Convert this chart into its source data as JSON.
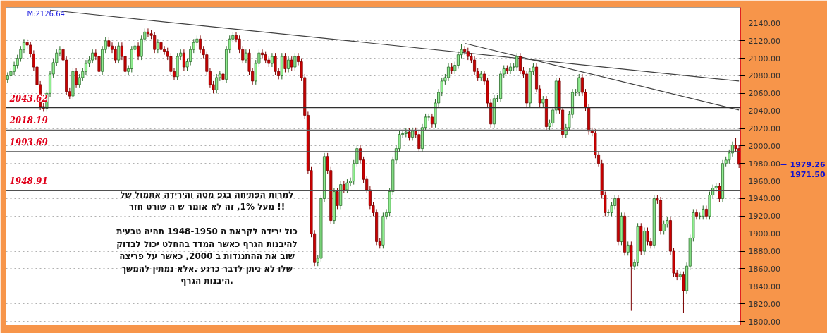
{
  "chart_data": {
    "type": "candlestick",
    "categories": [
      null,
      null,
      null,
      null,
      null,
      null,
      null,
      null,
      null,
      null,
      null,
      null,
      null,
      null,
      null,
      null,
      null,
      null,
      null,
      null,
      null,
      null,
      null,
      null,
      null,
      null,
      null,
      null,
      null,
      null,
      null,
      null,
      null,
      null,
      null,
      null,
      null,
      null,
      null,
      null,
      null,
      null,
      null,
      null,
      null,
      null,
      null,
      null,
      null,
      null,
      null,
      null,
      null,
      null,
      null,
      null,
      null,
      null,
      null,
      null,
      null,
      null,
      null,
      null,
      null,
      null,
      null,
      null,
      null,
      null,
      null,
      null,
      null,
      null,
      null,
      null,
      null,
      null,
      null,
      null,
      null,
      null,
      null,
      null,
      null,
      null,
      null,
      null,
      null,
      null,
      null,
      null,
      null,
      null,
      null,
      null,
      null,
      null,
      null,
      null,
      null,
      null,
      null,
      null,
      null,
      null,
      null,
      null,
      null,
      null,
      null,
      null,
      null,
      null,
      null,
      null,
      null,
      null,
      null,
      null,
      null,
      null,
      null,
      null,
      null,
      null,
      null,
      null,
      null,
      null,
      null,
      null,
      null,
      null,
      null,
      null,
      null,
      null,
      null,
      null,
      null,
      null,
      null,
      null,
      null,
      null,
      null,
      null,
      null,
      null,
      null,
      null,
      null,
      null,
      null,
      null,
      null,
      null,
      null,
      null,
      null,
      null,
      null,
      null,
      null,
      null,
      null,
      null,
      null,
      null,
      null,
      null,
      null,
      null,
      null,
      null,
      null,
      null,
      null,
      null,
      null,
      null,
      null,
      null,
      null,
      null,
      null,
      null,
      null,
      null,
      null,
      null,
      null,
      null,
      null,
      null,
      null,
      null,
      null,
      null,
      null,
      null,
      null,
      null,
      null,
      null,
      null,
      null,
      null,
      null,
      null,
      null,
      null,
      null,
      null,
      null,
      null,
      null,
      null,
      null,
      null,
      null,
      null,
      null,
      null
    ],
    "ohlc": [
      [
        2076,
        2084,
        2072,
        2080
      ],
      [
        2080,
        2089,
        2076,
        2085
      ],
      [
        2085,
        2096,
        2081,
        2092
      ],
      [
        2092,
        2104,
        2088,
        2100
      ],
      [
        2100,
        2114,
        2096,
        2110
      ],
      [
        2110,
        2122,
        2106,
        2118
      ],
      [
        2118,
        2122,
        2111,
        2115
      ],
      [
        2115,
        2119,
        2101,
        2105
      ],
      [
        2105,
        2109,
        2086,
        2090
      ],
      [
        2090,
        2094,
        2066,
        2070
      ],
      [
        2070,
        2074,
        2041,
        2045
      ],
      [
        2045,
        2049,
        2039,
        2043
      ],
      [
        2043,
        2064,
        2039,
        2060
      ],
      [
        2060,
        2086,
        2056,
        2082
      ],
      [
        2082,
        2099,
        2078,
        2095
      ],
      [
        2095,
        2110,
        2091,
        2106
      ],
      [
        2106,
        2114,
        2102,
        2110
      ],
      [
        2110,
        2114,
        2094,
        2098
      ],
      [
        2098,
        2102,
        2058,
        2062
      ],
      [
        2062,
        2066,
        2053,
        2057
      ],
      [
        2057,
        2089,
        2053,
        2085
      ],
      [
        2085,
        2089,
        2066,
        2070
      ],
      [
        2070,
        2082,
        2066,
        2078
      ],
      [
        2078,
        2089,
        2074,
        2085
      ],
      [
        2085,
        2098,
        2081,
        2094
      ],
      [
        2094,
        2102,
        2090,
        2098
      ],
      [
        2098,
        2110,
        2094,
        2106
      ],
      [
        2106,
        2110,
        2098,
        2102
      ],
      [
        2102,
        2106,
        2081,
        2085
      ],
      [
        2085,
        2114,
        2081,
        2110
      ],
      [
        2110,
        2124,
        2106,
        2120
      ],
      [
        2120,
        2124,
        2110,
        2114
      ],
      [
        2114,
        2118,
        2106,
        2110
      ],
      [
        2110,
        2114,
        2094,
        2098
      ],
      [
        2098,
        2118,
        2094,
        2114
      ],
      [
        2114,
        2118,
        2098,
        2102
      ],
      [
        2102,
        2106,
        2081,
        2085
      ],
      [
        2085,
        2092,
        2081,
        2088
      ],
      [
        2088,
        2114,
        2084,
        2110
      ],
      [
        2110,
        2118,
        2106,
        2114
      ],
      [
        2114,
        2118,
        2098,
        2102
      ],
      [
        2102,
        2126,
        2098,
        2122
      ],
      [
        2122,
        2134,
        2118,
        2130
      ],
      [
        2130,
        2134,
        2124,
        2128
      ],
      [
        2128,
        2132,
        2122,
        2126
      ],
      [
        2126,
        2130,
        2106,
        2110
      ],
      [
        2110,
        2122,
        2106,
        2118
      ],
      [
        2118,
        2122,
        2106,
        2110
      ],
      [
        2110,
        2114,
        2104,
        2108
      ],
      [
        2108,
        2112,
        2098,
        2102
      ],
      [
        2102,
        2106,
        2081,
        2085
      ],
      [
        2085,
        2089,
        2075,
        2079
      ],
      [
        2079,
        2106,
        2075,
        2102
      ],
      [
        2102,
        2110,
        2098,
        2106
      ],
      [
        2106,
        2110,
        2086,
        2090
      ],
      [
        2090,
        2100,
        2086,
        2096
      ],
      [
        2096,
        2114,
        2092,
        2110
      ],
      [
        2110,
        2122,
        2106,
        2118
      ],
      [
        2118,
        2126,
        2114,
        2122
      ],
      [
        2122,
        2126,
        2106,
        2110
      ],
      [
        2110,
        2114,
        2100,
        2104
      ],
      [
        2104,
        2108,
        2081,
        2085
      ],
      [
        2085,
        2089,
        2066,
        2070
      ],
      [
        2070,
        2074,
        2060,
        2064
      ],
      [
        2064,
        2082,
        2060,
        2078
      ],
      [
        2078,
        2086,
        2074,
        2082
      ],
      [
        2082,
        2086,
        2072,
        2076
      ],
      [
        2076,
        2114,
        2072,
        2110
      ],
      [
        2110,
        2126,
        2106,
        2122
      ],
      [
        2122,
        2130,
        2118,
        2126
      ],
      [
        2126,
        2130,
        2118,
        2122
      ],
      [
        2122,
        2126,
        2106,
        2110
      ],
      [
        2110,
        2114,
        2094,
        2098
      ],
      [
        2098,
        2110,
        2094,
        2106
      ],
      [
        2106,
        2110,
        2081,
        2085
      ],
      [
        2085,
        2089,
        2070,
        2074
      ],
      [
        2074,
        2098,
        2070,
        2094
      ],
      [
        2094,
        2110,
        2090,
        2106
      ],
      [
        2106,
        2110,
        2100,
        2104
      ],
      [
        2104,
        2108,
        2094,
        2098
      ],
      [
        2098,
        2102,
        2090,
        2094
      ],
      [
        2094,
        2106,
        2090,
        2102
      ],
      [
        2102,
        2106,
        2081,
        2085
      ],
      [
        2085,
        2089,
        2076,
        2080
      ],
      [
        2080,
        2106,
        2076,
        2102
      ],
      [
        2102,
        2106,
        2084,
        2088
      ],
      [
        2088,
        2102,
        2084,
        2098
      ],
      [
        2098,
        2102,
        2086,
        2090
      ],
      [
        2090,
        2106,
        2086,
        2102
      ],
      [
        2102,
        2106,
        2092,
        2096
      ],
      [
        2096,
        2100,
        2074,
        2078
      ],
      [
        2078,
        2082,
        2031,
        2035
      ],
      [
        2035,
        2039,
        1968,
        1972
      ],
      [
        1972,
        1976,
        1896,
        1900
      ],
      [
        1900,
        1904,
        1863,
        1867
      ],
      [
        1867,
        1876,
        1863,
        1872
      ],
      [
        1872,
        1944,
        1868,
        1940
      ],
      [
        1940,
        1992,
        1936,
        1988
      ],
      [
        1988,
        1992,
        1968,
        1972
      ],
      [
        1972,
        1976,
        1911,
        1915
      ],
      [
        1915,
        1952,
        1911,
        1948
      ],
      [
        1948,
        1952,
        1928,
        1932
      ],
      [
        1932,
        1960,
        1928,
        1956
      ],
      [
        1956,
        1960,
        1946,
        1950
      ],
      [
        1950,
        1962,
        1946,
        1958
      ],
      [
        1958,
        1964,
        1954,
        1960
      ],
      [
        1960,
        1984,
        1956,
        1980
      ],
      [
        1980,
        2001,
        1976,
        1997
      ],
      [
        1997,
        2001,
        1980,
        1984
      ],
      [
        1984,
        1988,
        1958,
        1962
      ],
      [
        1962,
        1966,
        1946,
        1950
      ],
      [
        1950,
        1954,
        1928,
        1932
      ],
      [
        1932,
        1936,
        1920,
        1924
      ],
      [
        1924,
        1928,
        1887,
        1891
      ],
      [
        1891,
        1895,
        1883,
        1887
      ],
      [
        1887,
        1924,
        1883,
        1920
      ],
      [
        1920,
        1928,
        1916,
        1924
      ],
      [
        1924,
        1952,
        1920,
        1948
      ],
      [
        1948,
        1988,
        1944,
        1984
      ],
      [
        1984,
        2001,
        1980,
        1997
      ],
      [
        1997,
        2017,
        1993,
        2013
      ],
      [
        2013,
        2018,
        2009,
        2014
      ],
      [
        2014,
        2020,
        2010,
        2016
      ],
      [
        2016,
        2020,
        2006,
        2010
      ],
      [
        2010,
        2021,
        2006,
        2017
      ],
      [
        2017,
        2021,
        2009,
        2013
      ],
      [
        2013,
        2017,
        1993,
        1997
      ],
      [
        1997,
        2025,
        1993,
        2021
      ],
      [
        2021,
        2037,
        2017,
        2033
      ],
      [
        2033,
        2037,
        2029,
        2033
      ],
      [
        2033,
        2037,
        2021,
        2025
      ],
      [
        2025,
        2053,
        2021,
        2049
      ],
      [
        2049,
        2065,
        2045,
        2061
      ],
      [
        2061,
        2078,
        2057,
        2074
      ],
      [
        2074,
        2082,
        2070,
        2078
      ],
      [
        2078,
        2094,
        2074,
        2090
      ],
      [
        2090,
        2094,
        2082,
        2086
      ],
      [
        2086,
        2096,
        2082,
        2092
      ],
      [
        2092,
        2108,
        2088,
        2104
      ],
      [
        2104,
        2116,
        2100,
        2110
      ],
      [
        2110,
        2114,
        2104,
        2108
      ],
      [
        2108,
        2112,
        2098,
        2102
      ],
      [
        2102,
        2106,
        2094,
        2098
      ],
      [
        2098,
        2102,
        2081,
        2085
      ],
      [
        2085,
        2089,
        2074,
        2078
      ],
      [
        2078,
        2086,
        2074,
        2082
      ],
      [
        2082,
        2086,
        2070,
        2074
      ],
      [
        2074,
        2078,
        2045,
        2049
      ],
      [
        2049,
        2053,
        2021,
        2025
      ],
      [
        2025,
        2058,
        2021,
        2054
      ],
      [
        2054,
        2058,
        2050,
        2054
      ],
      [
        2054,
        2086,
        2050,
        2082
      ],
      [
        2082,
        2092,
        2078,
        2088
      ],
      [
        2088,
        2092,
        2082,
        2086
      ],
      [
        2086,
        2094,
        2082,
        2090
      ],
      [
        2090,
        2094,
        2086,
        2090
      ],
      [
        2090,
        2106,
        2086,
        2102
      ],
      [
        2102,
        2106,
        2082,
        2086
      ],
      [
        2086,
        2090,
        2078,
        2082
      ],
      [
        2082,
        2086,
        2045,
        2049
      ],
      [
        2049,
        2089,
        2045,
        2085
      ],
      [
        2085,
        2094,
        2081,
        2090
      ],
      [
        2090,
        2094,
        2061,
        2065
      ],
      [
        2065,
        2069,
        2045,
        2049
      ],
      [
        2049,
        2057,
        2045,
        2053
      ],
      [
        2053,
        2057,
        2018,
        2022
      ],
      [
        2022,
        2030,
        2018,
        2026
      ],
      [
        2026,
        2045,
        2022,
        2041
      ],
      [
        2041,
        2078,
        2037,
        2074
      ],
      [
        2074,
        2078,
        2037,
        2041
      ],
      [
        2041,
        2045,
        2009,
        2013
      ],
      [
        2013,
        2025,
        2009,
        2021
      ],
      [
        2021,
        2040,
        2017,
        2036
      ],
      [
        2036,
        2065,
        2032,
        2061
      ],
      [
        2061,
        2065,
        2057,
        2061
      ],
      [
        2061,
        2082,
        2057,
        2078
      ],
      [
        2078,
        2082,
        2057,
        2061
      ],
      [
        2061,
        2065,
        2040,
        2044
      ],
      [
        2044,
        2048,
        2013,
        2017
      ],
      [
        2017,
        2021,
        2011,
        2015
      ],
      [
        2015,
        2019,
        1986,
        1990
      ],
      [
        1990,
        1994,
        1976,
        1980
      ],
      [
        1980,
        1984,
        1940,
        1944
      ],
      [
        1944,
        1948,
        1920,
        1924
      ],
      [
        1924,
        1928,
        1920,
        1924
      ],
      [
        1924,
        1936,
        1920,
        1932
      ],
      [
        1932,
        1944,
        1928,
        1940
      ],
      [
        1940,
        1944,
        1887,
        1891
      ],
      [
        1891,
        1924,
        1887,
        1920
      ],
      [
        1920,
        1924,
        1875,
        1879
      ],
      [
        1879,
        1891,
        1875,
        1887
      ],
      [
        1887,
        1891,
        1812,
        1863
      ],
      [
        1863,
        1871,
        1859,
        1867
      ],
      [
        1867,
        1912,
        1863,
        1908
      ],
      [
        1908,
        1912,
        1876,
        1880
      ],
      [
        1880,
        1907,
        1876,
        1903
      ],
      [
        1903,
        1907,
        1887,
        1891
      ],
      [
        1891,
        1895,
        1883,
        1887
      ],
      [
        1887,
        1944,
        1883,
        1940
      ],
      [
        1940,
        1944,
        1934,
        1938
      ],
      [
        1938,
        1942,
        1899,
        1903
      ],
      [
        1903,
        1915,
        1899,
        1911
      ],
      [
        1911,
        1919,
        1907,
        1915
      ],
      [
        1915,
        1919,
        1876,
        1880
      ],
      [
        1880,
        1884,
        1851,
        1855
      ],
      [
        1855,
        1859,
        1847,
        1851
      ],
      [
        1851,
        1857,
        1847,
        1853
      ],
      [
        1853,
        1857,
        1810,
        1835
      ],
      [
        1835,
        1867,
        1831,
        1863
      ],
      [
        1863,
        1899,
        1859,
        1895
      ],
      [
        1895,
        1928,
        1891,
        1924
      ],
      [
        1924,
        1928,
        1916,
        1920
      ],
      [
        1920,
        1924,
        1916,
        1920
      ],
      [
        1920,
        1932,
        1916,
        1928
      ],
      [
        1928,
        1932,
        1916,
        1920
      ],
      [
        1920,
        1948,
        1916,
        1944
      ],
      [
        1944,
        1956,
        1940,
        1952
      ],
      [
        1952,
        1958,
        1948,
        1954
      ],
      [
        1954,
        1958,
        1936,
        1940
      ],
      [
        1940,
        1984,
        1936,
        1980
      ],
      [
        1980,
        1988,
        1976,
        1984
      ],
      [
        1984,
        1996,
        1980,
        1992
      ],
      [
        1992,
        2005,
        1988,
        2001
      ],
      [
        2001,
        2009,
        1993,
        1997
      ],
      [
        1997,
        2001,
        1975,
        1979
      ]
    ],
    "series": [
      {
        "type": "line",
        "color": "#404040",
        "values": [
          null,
          null,
          null,
          null,
          null,
          null,
          null,
          null,
          null,
          null,
          null,
          null,
          null,
          2155,
          null,
          null,
          null,
          null,
          null,
          null,
          null,
          null,
          null,
          null,
          null,
          null,
          null,
          null,
          null,
          null,
          null,
          null,
          null,
          null,
          null,
          null,
          null,
          null,
          null,
          null,
          null,
          null,
          null,
          null,
          null,
          null,
          null,
          null,
          null,
          null,
          null,
          null,
          null,
          null,
          null,
          null,
          null,
          null,
          null,
          null,
          null,
          null,
          null,
          null,
          null,
          null,
          null,
          null,
          null,
          null,
          null,
          null,
          null,
          null,
          null,
          null,
          null,
          null,
          null,
          null,
          null,
          null,
          null,
          null,
          null,
          null,
          null,
          null,
          null,
          null,
          null,
          null,
          null,
          null,
          null,
          null,
          null,
          null,
          null,
          null,
          null,
          null,
          null,
          null,
          null,
          null,
          null,
          null,
          null,
          null,
          null,
          null,
          null,
          null,
          null,
          null,
          null,
          null,
          null,
          null,
          null,
          null,
          null,
          null,
          null,
          null,
          null,
          null,
          null,
          null,
          null,
          null,
          null,
          null,
          null,
          null,
          null,
          null,
          null,
          null,
          null,
          null,
          null,
          null,
          null,
          null,
          null,
          null,
          null,
          null,
          null,
          null,
          null,
          null,
          null,
          null,
          null,
          null,
          null,
          null,
          null,
          null,
          null,
          null,
          null,
          null,
          null,
          null,
          null,
          null,
          null,
          null,
          null,
          null,
          null,
          null,
          null,
          null,
          null,
          null,
          null,
          null,
          null,
          null,
          null,
          null,
          null,
          null,
          null,
          null,
          null,
          null,
          null,
          null,
          null,
          null,
          null,
          null,
          null,
          null,
          null,
          null,
          null,
          null,
          null,
          null,
          null,
          null,
          null,
          null,
          null,
          null,
          null,
          null,
          null,
          null,
          null,
          null,
          null,
          null,
          null,
          null,
          null,
          null,
          2074
        ]
      },
      {
        "type": "line",
        "color": "#404040",
        "values": [
          null,
          null,
          null,
          null,
          null,
          null,
          null,
          null,
          null,
          null,
          null,
          null,
          null,
          null,
          null,
          null,
          null,
          null,
          null,
          null,
          null,
          null,
          null,
          null,
          null,
          null,
          null,
          null,
          null,
          null,
          null,
          null,
          null,
          null,
          null,
          null,
          null,
          null,
          null,
          null,
          null,
          null,
          null,
          null,
          null,
          null,
          null,
          null,
          null,
          null,
          null,
          null,
          null,
          null,
          null,
          null,
          null,
          null,
          null,
          null,
          null,
          null,
          null,
          null,
          null,
          null,
          null,
          null,
          null,
          null,
          null,
          null,
          null,
          null,
          null,
          null,
          null,
          null,
          null,
          null,
          null,
          null,
          null,
          null,
          null,
          null,
          null,
          null,
          null,
          null,
          null,
          null,
          null,
          null,
          null,
          null,
          null,
          null,
          null,
          null,
          null,
          null,
          null,
          null,
          null,
          null,
          null,
          null,
          null,
          null,
          null,
          null,
          null,
          null,
          null,
          null,
          null,
          null,
          null,
          null,
          null,
          null,
          null,
          null,
          null,
          null,
          null,
          null,
          null,
          null,
          null,
          null,
          null,
          null,
          null,
          null,
          null,
          null,
          null,
          null,
          2117,
          null,
          null,
          null,
          null,
          null,
          null,
          null,
          null,
          null,
          null,
          null,
          null,
          null,
          null,
          null,
          null,
          null,
          null,
          null,
          null,
          null,
          null,
          null,
          null,
          null,
          null,
          null,
          null,
          null,
          null,
          null,
          null,
          null,
          null,
          null,
          null,
          null,
          null,
          null,
          null,
          null,
          null,
          null,
          null,
          null,
          null,
          null,
          null,
          null,
          null,
          null,
          null,
          null,
          null,
          null,
          null,
          null,
          null,
          null,
          null,
          null,
          null,
          null,
          null,
          null,
          null,
          null,
          null,
          null,
          null,
          null,
          null,
          null,
          null,
          null,
          null,
          null,
          null,
          null,
          null,
          null,
          null,
          null,
          2041
        ]
      }
    ],
    "ylim": [
      1796,
      2158
    ],
    "yticks": [
      {
        "value": 1800,
        "label": "1800.00"
      },
      {
        "value": 1820,
        "label": "1820.00"
      },
      {
        "value": 1840,
        "label": "1840.00"
      },
      {
        "value": 1860,
        "label": "1860.00"
      },
      {
        "value": 1880,
        "label": "1880.00"
      },
      {
        "value": 1900,
        "label": "1900.00"
      },
      {
        "value": 1920,
        "label": "1920.00"
      },
      {
        "value": 1940,
        "label": "1940.00"
      },
      {
        "value": 1960,
        "label": "1960.00"
      },
      {
        "value": 1980,
        "label": "1980.00"
      },
      {
        "value": 2000,
        "label": "2000.00"
      },
      {
        "value": 2020,
        "label": "2020.00"
      },
      {
        "value": 2040,
        "label": "2040.00"
      },
      {
        "value": 2060,
        "label": "2060.00"
      },
      {
        "value": 2080,
        "label": "2080.00"
      },
      {
        "value": 2100,
        "label": "2100.00"
      },
      {
        "value": 2120,
        "label": "2120.00"
      },
      {
        "value": 2140,
        "label": "2140.00"
      }
    ],
    "tick_labels": "y",
    "grid": "y",
    "ref_lines": [
      {
        "axis": "y",
        "value": 2043.62,
        "label": "2043.62",
        "color": "#303030"
      },
      {
        "axis": "y",
        "value": 2018.19,
        "label": "2018.19",
        "color": "#606060"
      },
      {
        "axis": "y",
        "value": 1993.69,
        "label": "1993.69",
        "color": "#505050"
      },
      {
        "axis": "y",
        "value": 1948.91,
        "label": "1948.91",
        "color": "#505050"
      }
    ],
    "annotations": [
      "M:2126.64",
      "למרות הפתיחה בגפ מטה והירידה אתמול של\nמעל 1%, זה לא אומר ש ה שורט חזר !!",
      "כול ירידה לקראת ה 1948-1950 תהיה טבעית\nלהיבנות הגרף כאשר המדד בהחלט יכול לבדוק\nשוב את ההתנגדות ב 2000, כאשר על פריצה\nשלו לא ניתן לדבר כרגע .אלא נמתין להמשך\nהיבנות הגרף.",
      "1979.26",
      "1971.50"
    ]
  }
}
